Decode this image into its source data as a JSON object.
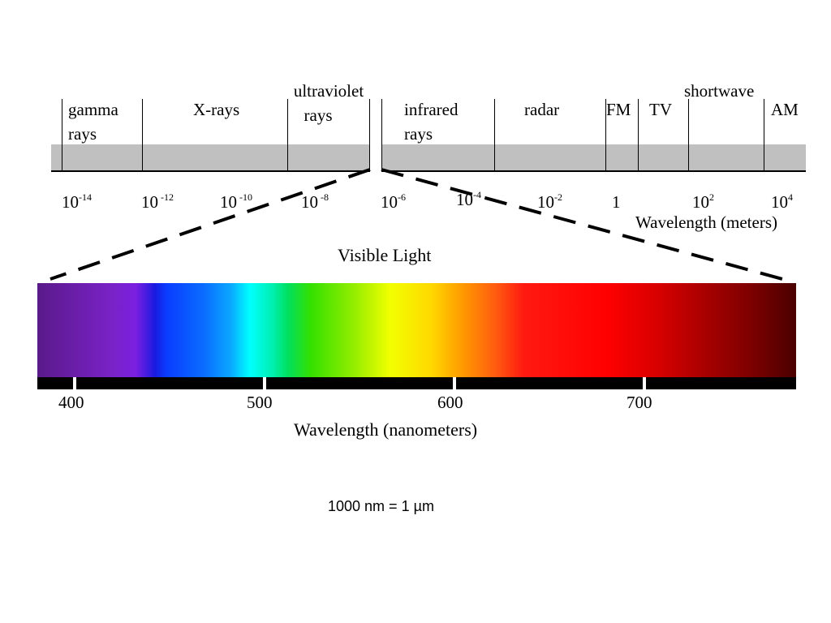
{
  "em_spectrum": {
    "bands": [
      {
        "id": "gamma",
        "lines": [
          "gamma",
          "rays"
        ]
      },
      {
        "id": "xray",
        "lines": [
          "X-rays"
        ]
      },
      {
        "id": "uv",
        "lines": [
          "ultraviolet",
          "rays"
        ]
      },
      {
        "id": "infrared",
        "lines": [
          "infrared",
          "rays"
        ]
      },
      {
        "id": "radar",
        "lines": [
          "radar"
        ]
      },
      {
        "id": "fm",
        "lines": [
          "FM"
        ]
      },
      {
        "id": "tv",
        "lines": [
          "TV"
        ]
      },
      {
        "id": "shortwave",
        "lines": [
          "shortwave"
        ]
      },
      {
        "id": "am",
        "lines": [
          "AM"
        ]
      }
    ],
    "wavelength_ticks": [
      {
        "base": "10",
        "exp": "-14"
      },
      {
        "base": "10",
        "exp": " -12"
      },
      {
        "base": "10",
        "exp": " -10"
      },
      {
        "base": "10",
        "exp": " -8"
      },
      {
        "base": "10",
        "exp": "-6"
      },
      {
        "base": "10",
        "exp": "-4"
      },
      {
        "base": "10",
        "exp": "-2"
      },
      {
        "base": "1",
        "exp": ""
      },
      {
        "base": "10",
        "exp": "2"
      },
      {
        "base": "10",
        "exp": "4"
      }
    ],
    "axis_title": "Wavelength (meters)",
    "band_color": "#c0c0c0"
  },
  "visible": {
    "title": "Visible Light",
    "tick_labels": [
      "400",
      "500",
      "600",
      "700"
    ],
    "axis_title": "Wavelength (nanometers)",
    "range_nm": [
      380,
      780
    ]
  },
  "footnote": "1000 nm = 1 µm"
}
